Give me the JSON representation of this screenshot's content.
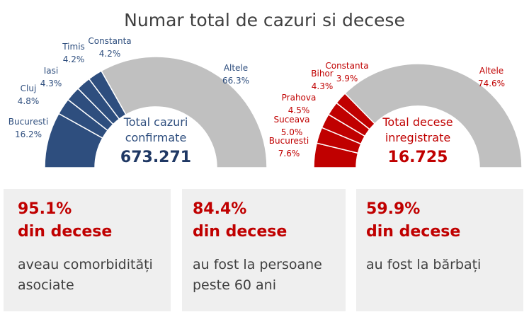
{
  "title": "Numar total de cazuri si decese",
  "chart_data": [
    {
      "type": "pie",
      "variant": "half-donut",
      "center_title_line1": "Total cazuri",
      "center_title_line2": "confirmate",
      "center_value": "673.271",
      "colors": {
        "highlight": "#2e4e7e",
        "other": "#c0c0c0",
        "label": "#2e4e7e",
        "value": "#1f3864"
      },
      "slices": [
        {
          "label": "Bucuresti",
          "value": 16.2,
          "display": "16.2%"
        },
        {
          "label": "Cluj",
          "value": 4.8,
          "display": "4.8%"
        },
        {
          "label": "Iasi",
          "value": 4.3,
          "display": "4.3%"
        },
        {
          "label": "Timis",
          "value": 4.2,
          "display": "4.2%"
        },
        {
          "label": "Constanta",
          "value": 4.2,
          "display": "4.2%"
        },
        {
          "label": "Altele",
          "value": 66.3,
          "display": "66.3%"
        }
      ]
    },
    {
      "type": "pie",
      "variant": "half-donut",
      "center_title_line1": "Total decese",
      "center_title_line2": "inregistrate",
      "center_value": "16.725",
      "colors": {
        "highlight": "#c00000",
        "other": "#c0c0c0",
        "label": "#c00000",
        "value": "#c00000"
      },
      "slices": [
        {
          "label": "Bucuresti",
          "value": 7.6,
          "display": "7.6%"
        },
        {
          "label": "Suceava",
          "value": 5.0,
          "display": "5.0%"
        },
        {
          "label": "Prahova",
          "value": 4.5,
          "display": "4.5%"
        },
        {
          "label": "Bihor",
          "value": 4.3,
          "display": "4.3%"
        },
        {
          "label": "Constanta",
          "value": 3.9,
          "display": "3.9%"
        },
        {
          "label": "Altele",
          "value": 74.6,
          "display": "74.6%"
        }
      ]
    }
  ],
  "cards": [
    {
      "percent": "95.1%",
      "headline": "din decese",
      "description": "aveau comorbidități\nasociate"
    },
    {
      "percent": "84.4%",
      "headline": "din decese",
      "description": "au fost la persoane\npeste 60 ani"
    },
    {
      "percent": "59.9%",
      "headline": "din decese",
      "description": "au fost la bărbați"
    }
  ]
}
